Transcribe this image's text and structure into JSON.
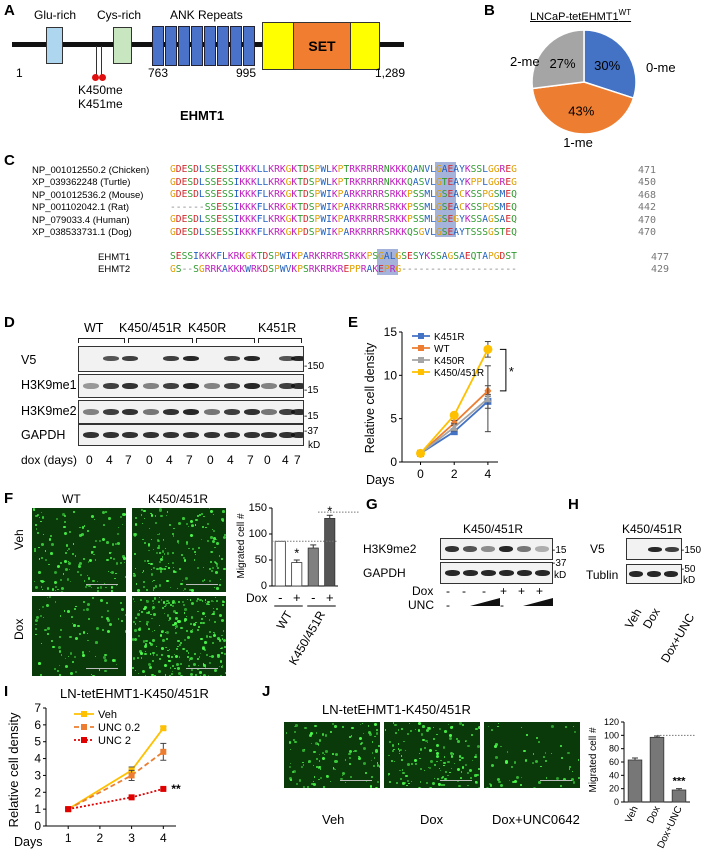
{
  "panels": {
    "A": "A",
    "B": "B",
    "C": "C",
    "D": "D",
    "E": "E",
    "F": "F",
    "G": "G",
    "H": "H",
    "I": "I",
    "J": "J"
  },
  "panelA": {
    "domains": [
      "Glu-rich",
      "Cys-rich",
      "ANK Repeats"
    ],
    "set_label": "SET",
    "positions": {
      "start": "1",
      "ank_start": "763",
      "ank_end": "995",
      "end": "1,289"
    },
    "sites": [
      "K450me",
      "K451me"
    ],
    "protein": "EHMT1",
    "colors": {
      "glu": "#aed6ee",
      "cys": "#c8e6c0",
      "ank": "#4a72c8",
      "set_outer": "#ffff00",
      "set_inner": "#f07d30"
    }
  },
  "panelB": {
    "title": "LNCaP-tetEHMT1",
    "title_sup": "WT",
    "chart_data": {
      "type": "pie",
      "title": "LNCaP-tetEHMT1WT",
      "categories": [
        "0-me",
        "1-me",
        "2-me"
      ],
      "values": [
        30,
        43,
        27
      ],
      "value_labels": [
        "30%",
        "43%",
        "27%"
      ],
      "colors": [
        "#4472c4",
        "#ed7d31",
        "#a5a5a5"
      ]
    }
  },
  "panelC": {
    "species": [
      {
        "name": "NP_001012550.2 (Chicken)",
        "seq": "GDESDLSSESSIKKKLLKRKGKTDSPWLKPTRKRRRRNKKKQANVLGAEAYKSSLGGREG",
        "num": "471"
      },
      {
        "name": "XP_039362248 (Turtle)",
        "seq": "GDESDLSSESSIKKKLLKRKGKTDSPWLKPTRKRRRRNKKKQASVLGTEAYKPPLGGREG",
        "num": "450"
      },
      {
        "name": "NP_001012536.2 (Mouse)",
        "seq": "GDESDLSSESSIKKKFLKRKGKTDSPWIKPARKRRRRSRKKPSSMLGSEACKSSPGSMEQ",
        "num": "468"
      },
      {
        "name": "NP_001102042.1 (Rat)",
        "seq": "------SSESSIKKKFLKRKGKTDSPWIKPARKRRRRSRKKPSSMLGSEACKSSPGSMEQ",
        "num": "442"
      },
      {
        "name": "NP_079033.4 (Human)",
        "seq": "GDESDLSSESSIKKKFLKRKGKTDSPWIKPARKRRRRSRKKPSSMLGSEGYKSSAGSAEQ",
        "num": "470"
      },
      {
        "name": "XP_038533731.1 (Dog)",
        "seq": "GDESDLSSESSIKKKFLKRKGKPDSPWIKPARKRRRRSRKKQSGVLGSEAYTSSSGSTEQ",
        "num": "470"
      }
    ],
    "paralogs": [
      {
        "name": "EHMT1",
        "seq": "SESSIKKKFLKRKGKTDSPWIKPARKRRRRSRKKPSGALGSESYKSSAGSAEQTAPGDST",
        "num": "477"
      },
      {
        "name": "EHMT2",
        "seq": "GS--SGRRKAKKKWRKDSPWVKPSRKRRKREPPRAKEPRG--------------------",
        "num": "429"
      }
    ]
  },
  "panelD": {
    "groups": [
      "WT",
      "K450/451R",
      "K450R",
      "K451R"
    ],
    "rows": [
      "V5",
      "H3K9me1",
      "H3K9me2",
      "GAPDH"
    ],
    "markers": [
      "150",
      "15",
      "15",
      "37"
    ],
    "kd": "kD",
    "days_label": "dox (days)",
    "days": [
      "0",
      "4",
      "7",
      "0",
      "4",
      "7",
      "0",
      "4",
      "7",
      "0",
      "4",
      "7"
    ]
  },
  "panelE": {
    "chart_data": {
      "type": "line",
      "x": [
        0,
        2,
        4
      ],
      "xlabel": "Days",
      "ylabel": "Relative cell density",
      "ylim": [
        0,
        15
      ],
      "yticks": [
        "0",
        "5",
        "10",
        "15"
      ],
      "xticks": [
        "0",
        "2",
        "4"
      ],
      "legend_position": "top-left",
      "significance": "*",
      "series": [
        {
          "name": "K451R",
          "values": [
            1,
            3.5,
            7.0
          ],
          "err": [
            0,
            0.2,
            0.8
          ],
          "color": "#4472c4",
          "marker": "square"
        },
        {
          "name": "WT",
          "values": [
            1,
            4.5,
            8.2
          ],
          "err": [
            0,
            0.3,
            0.6
          ],
          "color": "#ed7d31",
          "marker": "diamond"
        },
        {
          "name": "K450R",
          "values": [
            1,
            4.0,
            7.3
          ],
          "err": [
            0,
            0.4,
            3.8
          ],
          "color": "#a5a5a5",
          "marker": "triangle"
        },
        {
          "name": "K450/451R",
          "values": [
            1,
            5.4,
            13.0
          ],
          "err": [
            0,
            0.3,
            0.9
          ],
          "color": "#ffc000",
          "marker": "circle"
        }
      ]
    }
  },
  "panelF": {
    "cols": [
      "WT",
      "K450/451R"
    ],
    "rows": [
      "Veh",
      "Dox"
    ],
    "chart_data": {
      "type": "bar",
      "categories": [
        "WT -",
        "WT +",
        "K450/451R -",
        "K450/451R +"
      ],
      "values": [
        86,
        45,
        73,
        130
      ],
      "err": [
        0,
        5,
        6,
        6
      ],
      "ylabel": "Migrated cell #",
      "ylim": [
        0,
        150
      ],
      "yticks": [
        "0",
        "50",
        "100",
        "150"
      ],
      "xgroups": [
        "WT",
        "K450/451R"
      ],
      "dox_label": "Dox",
      "dox_signs": [
        "-",
        "+",
        "-",
        "+"
      ],
      "significance": [
        "*",
        "*"
      ]
    }
  },
  "panelG": {
    "title": "K450/451R",
    "rows": [
      "H3K9me2",
      "GAPDH"
    ],
    "markers": [
      "15",
      "37"
    ],
    "kd": "kD",
    "dox_label": "Dox",
    "unc_label": "UNC",
    "dox": [
      "-",
      "-",
      "-",
      "+",
      "+",
      "+"
    ],
    "unc": [
      "-",
      "",
      "",
      "-",
      "",
      ""
    ]
  },
  "panelH": {
    "title": "K450/451R",
    "rows": [
      "V5",
      "Tublin"
    ],
    "markers": [
      "150",
      "50"
    ],
    "kd": "kD",
    "lanes": [
      "Veh",
      "Dox",
      "Dox+UNC"
    ]
  },
  "panelI": {
    "title": "LN-tetEHMT1-K450/451R",
    "chart_data": {
      "type": "line",
      "x": [
        1,
        3,
        4
      ],
      "xlabel": "Days",
      "ylabel": "Relative cell density",
      "ylim": [
        0,
        7
      ],
      "yticks": [
        "0",
        "1",
        "2",
        "3",
        "4",
        "5",
        "6",
        "7"
      ],
      "xticks": [
        "1",
        "2",
        "3",
        "4"
      ],
      "significance": "**",
      "series": [
        {
          "name": "Veh",
          "values": [
            1.0,
            3.3,
            5.8
          ],
          "err": [
            0.1,
            0.2,
            0.1
          ],
          "color": "#ffc000",
          "style": "solid"
        },
        {
          "name": "UNC 0.2",
          "values": [
            1.0,
            3.0,
            4.4
          ],
          "err": [
            0.1,
            0.3,
            0.5
          ],
          "color": "#ed7d31",
          "style": "dashed"
        },
        {
          "name": "UNC 2",
          "values": [
            1.0,
            1.7,
            2.2
          ],
          "err": [
            0.05,
            0.05,
            0.05
          ],
          "color": "#e00000",
          "style": "dotted"
        }
      ]
    }
  },
  "panelJ": {
    "title": "LN-tetEHMT1-K450/451R",
    "images": [
      "Veh",
      "Dox",
      "Dox+UNC0642"
    ],
    "chart_data": {
      "type": "bar",
      "categories": [
        "Veh",
        "Dox",
        "Dox+UNC"
      ],
      "values": [
        63,
        97,
        18
      ],
      "err": [
        3,
        2,
        2
      ],
      "ylabel": "Migrated cell #",
      "ylim": [
        0,
        120
      ],
      "yticks": [
        "0",
        "20",
        "40",
        "60",
        "80",
        "100",
        "120"
      ],
      "significance": "***"
    }
  }
}
